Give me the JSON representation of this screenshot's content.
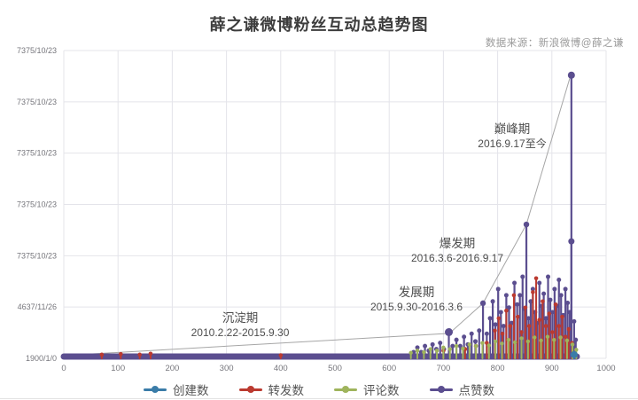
{
  "page": {
    "title": "薛之谦微博粉丝互动总趋势图",
    "source": "数据来源：新浪微博@薛之谦"
  },
  "legend": [
    {
      "label": "创建数",
      "color": "#3a7ca8"
    },
    {
      "label": "转发数",
      "color": "#bb3a30"
    },
    {
      "label": "评论数",
      "color": "#9fb45c"
    },
    {
      "label": "点赞数",
      "color": "#5b4e8f"
    }
  ],
  "annotations": [
    {
      "title": "沉淀期",
      "range": "2010.2.22-2015.9.30"
    },
    {
      "title": "发展期",
      "range": "2015.9.30-2016.3.6"
    },
    {
      "title": "爆发期",
      "range": "2016.3.6-2016.9.17"
    },
    {
      "title": "巅峰期",
      "range": "2016.9.17至今"
    }
  ],
  "chart_data": {
    "type": "line",
    "title": "薛之谦微博粉丝互动总趋势图",
    "xlabel": "",
    "ylabel": "",
    "x_range": [
      0,
      1000
    ],
    "grid": true,
    "legend_position": "bottom",
    "x_ticks": [
      "0",
      "100",
      "200",
      "300",
      "400",
      "500",
      "600",
      "700",
      "800",
      "900",
      "1000"
    ],
    "y_tick_labels_bottom_to_top": [
      "1900/1/0",
      "4637/11/26",
      "7375/10/23",
      "7375/10/23",
      "7375/10/23",
      "7375/10/23",
      "7375/10/23"
    ],
    "colors": {
      "grid": "#e4e4ea",
      "axis_text": "#76767c",
      "trend": "#a6a6a6"
    },
    "trend_line": [
      [
        0,
        0.009
      ],
      [
        711,
        0.081
      ],
      [
        773,
        0.179
      ],
      [
        853,
        0.435
      ],
      [
        935,
        0.922
      ]
    ],
    "series": [
      {
        "name": "点赞数",
        "color": "#5b4e8f",
        "stem_w": 2.2,
        "marker_r": 2.5,
        "band": [
          0,
          946
        ],
        "points": [
          [
            645,
            0.02
          ],
          [
            652,
            0.035
          ],
          [
            659,
            0.02
          ],
          [
            666,
            0.04
          ],
          [
            673,
            0.025
          ],
          [
            680,
            0.045
          ],
          [
            687,
            0.03
          ],
          [
            694,
            0.05
          ],
          [
            701,
            0.03
          ],
          [
            710,
            0.085,
            4.5
          ],
          [
            717,
            0.04
          ],
          [
            724,
            0.06
          ],
          [
            731,
            0.04
          ],
          [
            738,
            0.07
          ],
          [
            745,
            0.045
          ],
          [
            752,
            0.08
          ],
          [
            759,
            0.055
          ],
          [
            766,
            0.09
          ],
          [
            773,
            0.179,
            3.2
          ],
          [
            780,
            0.08
          ],
          [
            786,
            0.13
          ],
          [
            791,
            0.185
          ],
          [
            796,
            0.11
          ],
          [
            801,
            0.225
          ],
          [
            806,
            0.15
          ],
          [
            811,
            0.105
          ],
          [
            816,
            0.205
          ],
          [
            821,
            0.165
          ],
          [
            826,
            0.115
          ],
          [
            831,
            0.245
          ],
          [
            836,
            0.175
          ],
          [
            841,
            0.205
          ],
          [
            846,
            0.265
          ],
          [
            850,
            0.16
          ],
          [
            853,
            0.435,
            3.2
          ],
          [
            857,
            0.13
          ],
          [
            861,
            0.185
          ],
          [
            865,
            0.225
          ],
          [
            869,
            0.15
          ],
          [
            873,
            0.115
          ],
          [
            877,
            0.245
          ],
          [
            881,
            0.17
          ],
          [
            885,
            0.21
          ],
          [
            889,
            0.13
          ],
          [
            893,
            0.265
          ],
          [
            897,
            0.19
          ],
          [
            901,
            0.15
          ],
          [
            905,
            0.225
          ],
          [
            909,
            0.17
          ],
          [
            913,
            0.255
          ],
          [
            917,
            0.205
          ],
          [
            921,
            0.14
          ],
          [
            925,
            0.225
          ],
          [
            929,
            0.18
          ],
          [
            933,
            0.15
          ],
          [
            936,
            0.92,
            4
          ],
          [
            936,
            0.38,
            3.5
          ],
          [
            941,
            0.12
          ],
          [
            944,
            0.06
          ]
        ]
      },
      {
        "name": "转发数",
        "color": "#bb3a30",
        "stem_w": 2,
        "marker_r": 2.3,
        "points": [
          [
            70,
            0.012
          ],
          [
            105,
            0.014
          ],
          [
            140,
            0.012
          ],
          [
            160,
            0.015
          ],
          [
            400,
            0.01
          ],
          [
            700,
            0.025
          ],
          [
            740,
            0.03
          ],
          [
            760,
            0.04
          ],
          [
            780,
            0.05
          ],
          [
            795,
            0.09
          ],
          [
            802,
            0.13
          ],
          [
            809,
            0.08
          ],
          [
            816,
            0.155
          ],
          [
            823,
            0.105
          ],
          [
            830,
            0.205
          ],
          [
            837,
            0.135
          ],
          [
            844,
            0.085
          ],
          [
            851,
            0.165
          ],
          [
            858,
            0.105
          ],
          [
            865,
            0.215
          ],
          [
            871,
            0.26
          ],
          [
            877,
            0.125
          ],
          [
            883,
            0.185
          ],
          [
            889,
            0.105
          ],
          [
            895,
            0.145
          ],
          [
            901,
            0.085
          ],
          [
            907,
            0.175
          ],
          [
            913,
            0.105
          ],
          [
            919,
            0.135
          ],
          [
            925,
            0.07
          ],
          [
            931,
            0.095
          ],
          [
            937,
            0.05
          ]
        ]
      },
      {
        "name": "评论数",
        "color": "#9fb45c",
        "stem_w": 2,
        "marker_r": 2.2,
        "points": [
          [
            640,
            0.018
          ],
          [
            652,
            0.025
          ],
          [
            664,
            0.02
          ],
          [
            676,
            0.03
          ],
          [
            688,
            0.025
          ],
          [
            700,
            0.035
          ],
          [
            712,
            0.03
          ],
          [
            724,
            0.04
          ],
          [
            736,
            0.032
          ],
          [
            748,
            0.045
          ],
          [
            760,
            0.04
          ],
          [
            772,
            0.05
          ],
          [
            784,
            0.042
          ],
          [
            796,
            0.055
          ],
          [
            808,
            0.048
          ],
          [
            820,
            0.06
          ],
          [
            832,
            0.052
          ],
          [
            844,
            0.065
          ],
          [
            856,
            0.055
          ],
          [
            868,
            0.068
          ],
          [
            880,
            0.058
          ],
          [
            892,
            0.07
          ],
          [
            904,
            0.06
          ],
          [
            916,
            0.068
          ],
          [
            928,
            0.058
          ],
          [
            938,
            0.045
          ],
          [
            945,
            0.028
          ]
        ]
      },
      {
        "name": "创建数",
        "color": "#3a7ca8",
        "stem_w": 2,
        "marker_r": 4,
        "points": [
          [
            941,
            0.012,
            4
          ]
        ]
      }
    ]
  }
}
